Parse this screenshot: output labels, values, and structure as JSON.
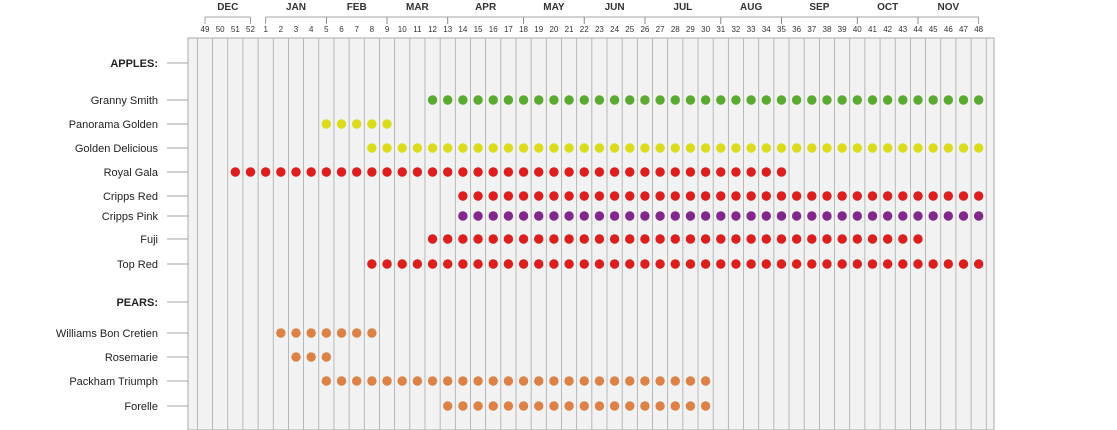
{
  "chart_data": {
    "type": "scatter",
    "title": "",
    "colors": {
      "green": "#5aaa32",
      "yellow": "#dcdc1e",
      "red": "#dc1e1e",
      "purple": "#82288c",
      "orange": "#dc8246",
      "grid": "#aaaaaa",
      "background": "#f2f2f2"
    },
    "months": [
      {
        "label": "DEC",
        "weeks": [
          49,
          52
        ]
      },
      {
        "label": "JAN",
        "weeks": [
          1,
          5
        ]
      },
      {
        "label": "FEB",
        "weeks": [
          5,
          9
        ]
      },
      {
        "label": "MAR",
        "weeks": [
          9,
          13
        ]
      },
      {
        "label": "APR",
        "weeks": [
          13,
          18
        ]
      },
      {
        "label": "MAY",
        "weeks": [
          18,
          22
        ]
      },
      {
        "label": "JUN",
        "weeks": [
          22,
          26
        ]
      },
      {
        "label": "JUL",
        "weeks": [
          26,
          31
        ]
      },
      {
        "label": "AUG",
        "weeks": [
          31,
          35
        ]
      },
      {
        "label": "SEP",
        "weeks": [
          35,
          40
        ]
      },
      {
        "label": "OCT",
        "weeks": [
          40,
          44
        ]
      },
      {
        "label": "NOV",
        "weeks": [
          44,
          48
        ]
      }
    ],
    "weeks": [
      49,
      50,
      51,
      52,
      1,
      2,
      3,
      4,
      5,
      6,
      7,
      8,
      9,
      10,
      11,
      12,
      13,
      14,
      15,
      16,
      17,
      18,
      19,
      20,
      21,
      22,
      23,
      24,
      25,
      26,
      27,
      28,
      29,
      30,
      31,
      32,
      33,
      34,
      35,
      36,
      37,
      38,
      39,
      40,
      41,
      42,
      43,
      44,
      45,
      46,
      47,
      48
    ],
    "rows": [
      {
        "label": "APPLES:",
        "section": true
      },
      {
        "label": "Granny Smith",
        "color": "green",
        "weeks": [
          12,
          13,
          14,
          15,
          16,
          17,
          18,
          19,
          20,
          21,
          22,
          23,
          24,
          25,
          26,
          27,
          28,
          29,
          30,
          31,
          32,
          33,
          34,
          35,
          36,
          37,
          38,
          39,
          40,
          41,
          42,
          43,
          44,
          45,
          46,
          47,
          48
        ]
      },
      {
        "label": "Panorama Golden",
        "color": "yellow",
        "weeks": [
          5,
          6,
          7,
          8,
          9
        ]
      },
      {
        "label": "Golden Delicious",
        "color": "yellow",
        "weeks": [
          8,
          9,
          10,
          11,
          12,
          13,
          14,
          15,
          16,
          17,
          18,
          19,
          20,
          21,
          22,
          23,
          24,
          25,
          26,
          27,
          28,
          29,
          30,
          31,
          32,
          33,
          34,
          35,
          36,
          37,
          38,
          39,
          40,
          41,
          42,
          43,
          44,
          45,
          46,
          47,
          48
        ]
      },
      {
        "label": "Royal Gala",
        "color": "red",
        "weeks": [
          51,
          52,
          1,
          2,
          3,
          4,
          5,
          6,
          7,
          8,
          9,
          10,
          11,
          12,
          13,
          14,
          15,
          16,
          17,
          18,
          19,
          20,
          21,
          22,
          23,
          24,
          25,
          26,
          27,
          28,
          29,
          30,
          31,
          32,
          33,
          34,
          35
        ]
      },
      {
        "label": "Cripps Red",
        "color": "red",
        "weeks": [
          14,
          15,
          16,
          17,
          18,
          19,
          20,
          21,
          22,
          23,
          24,
          25,
          26,
          27,
          28,
          29,
          30,
          31,
          32,
          33,
          34,
          35,
          36,
          37,
          38,
          39,
          40,
          41,
          42,
          43,
          44,
          45,
          46,
          47,
          48
        ]
      },
      {
        "label": "Cripps Pink",
        "color": "purple",
        "weeks": [
          14,
          15,
          16,
          17,
          18,
          19,
          20,
          21,
          22,
          23,
          24,
          25,
          26,
          27,
          28,
          29,
          30,
          31,
          32,
          33,
          34,
          35,
          36,
          37,
          38,
          39,
          40,
          41,
          42,
          43,
          44,
          45,
          46,
          47,
          48
        ]
      },
      {
        "label": "Fuji",
        "color": "red",
        "weeks": [
          12,
          13,
          14,
          15,
          16,
          17,
          18,
          19,
          20,
          21,
          22,
          23,
          24,
          25,
          26,
          27,
          28,
          29,
          30,
          31,
          32,
          33,
          34,
          35,
          36,
          37,
          38,
          39,
          40,
          41,
          42,
          43,
          44
        ]
      },
      {
        "label": "Top Red",
        "color": "red",
        "weeks": [
          8,
          9,
          10,
          11,
          12,
          13,
          14,
          15,
          16,
          17,
          18,
          19,
          20,
          21,
          22,
          23,
          24,
          25,
          26,
          27,
          28,
          29,
          30,
          31,
          32,
          33,
          34,
          35,
          36,
          37,
          38,
          39,
          40,
          41,
          42,
          43,
          44,
          45,
          46,
          47,
          48
        ]
      },
      {
        "label": "PEARS:",
        "section": true
      },
      {
        "label": "Williams Bon Cretien",
        "color": "orange",
        "weeks": [
          2,
          3,
          4,
          5,
          6,
          7,
          8
        ]
      },
      {
        "label": "Rosemarie",
        "color": "orange",
        "weeks": [
          3,
          4,
          5
        ]
      },
      {
        "label": "Packham Triumph",
        "color": "orange",
        "weeks": [
          5,
          6,
          7,
          8,
          9,
          10,
          11,
          12,
          13,
          14,
          15,
          16,
          17,
          18,
          19,
          20,
          21,
          22,
          23,
          24,
          25,
          26,
          27,
          28,
          29,
          30
        ]
      },
      {
        "label": "Forelle",
        "color": "orange",
        "weeks": [
          13,
          14,
          15,
          16,
          17,
          18,
          19,
          20,
          21,
          22,
          23,
          24,
          25,
          26,
          27,
          28,
          29,
          30
        ]
      }
    ]
  }
}
